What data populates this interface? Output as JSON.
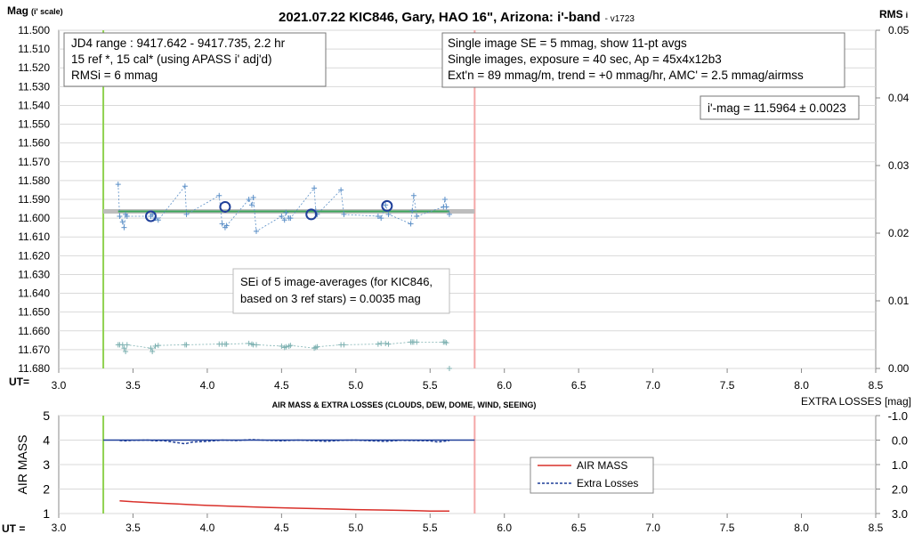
{
  "chart_data": [
    {
      "type": "scatter",
      "title": "2021.07.22 KIC846, Gary, HAO 16\", Arizona: i'-band",
      "version": "- v1723",
      "ylabel_main": "Mag",
      "ylabel_sub": "(i' scale)",
      "y2label_main": "RMS",
      "y2label_sub": "i",
      "xlabel": "UT=",
      "xlim": [
        3.0,
        8.5
      ],
      "ylim": [
        11.68,
        11.5
      ],
      "y2lim": [
        0,
        0.05
      ],
      "x_ticks": [
        "3.0",
        "3.5",
        "4.0",
        "4.5",
        "5.0",
        "5.5",
        "6.0",
        "6.5",
        "7.0",
        "7.5",
        "8.0",
        "8.5"
      ],
      "y_ticks": [
        "11.500",
        "11.510",
        "11.520",
        "11.530",
        "11.540",
        "11.550",
        "11.560",
        "11.570",
        "11.580",
        "11.590",
        "11.600",
        "11.610",
        "11.620",
        "11.630",
        "11.640",
        "11.650",
        "11.660",
        "11.670",
        "11.680"
      ],
      "y2_ticks": [
        "0.05",
        "0.04",
        "0.03",
        "0.02",
        "0.01",
        "0.00"
      ],
      "info_left": [
        "JD4 range : 9417.642 - 9417.735, 2.2  hr",
        "15 ref *, 15 cal* (using APASS i' adj'd)",
        "RMSi = 6 mmag"
      ],
      "info_right": [
        "Single image SE = 5 mmag, show 11-pt avgs",
        "Single images, exposure = 40 sec, Ap = 45x4x12b3",
        "Ext'n = 89 mmag/m, trend = +0 mmag/hr, AMC' = 2.5 mmag/airmss"
      ],
      "result_label": "i'-mag = 11.5964 ± 0.0023",
      "annotation": [
        "SEi of 5 image-averages (for KIC846,",
        "based on 3 ref stars) = 0.0035 mag"
      ],
      "start_line_x": 3.3,
      "end_line_x": 5.8,
      "mean_mag": 11.5964,
      "colors": {
        "single": "#5b8fc7",
        "avg": "#1f3f99",
        "trend": "#3aa65a",
        "band": "#bdbdbd",
        "start_line": "#8fd14f",
        "end_line": "#f4a7a7",
        "rms": "#7fb2b2"
      },
      "series": [
        {
          "name": "",
          "x": [
            3.4,
            3.41,
            3.43,
            3.44,
            3.45,
            3.46,
            3.62,
            3.63,
            3.65,
            3.67,
            3.85,
            3.86,
            4.08,
            4.1,
            4.12,
            4.13,
            4.28,
            4.3,
            4.31,
            4.33,
            4.5,
            4.52,
            4.53,
            4.55,
            4.56,
            4.72,
            4.73,
            4.74,
            4.9,
            4.92,
            5.15,
            5.17,
            5.2,
            5.22,
            5.37,
            5.38,
            5.39,
            5.41,
            5.59,
            5.6,
            5.61,
            5.63
          ],
          "y": [
            11.582,
            11.599,
            11.602,
            11.605,
            11.598,
            11.599,
            11.599,
            11.598,
            11.6,
            11.601,
            11.583,
            11.598,
            11.588,
            11.603,
            11.605,
            11.604,
            11.59,
            11.593,
            11.589,
            11.607,
            11.599,
            11.601,
            11.597,
            11.6,
            11.6,
            11.584,
            11.596,
            11.598,
            11.585,
            11.598,
            11.599,
            11.6,
            11.593,
            11.598,
            11.603,
            11.596,
            11.588,
            11.599,
            11.594,
            11.59,
            11.594,
            11.598
          ]
        },
        {
          "name": "",
          "x": [
            3.62,
            4.12,
            4.7,
            5.21
          ],
          "y": [
            11.599,
            11.594,
            11.598,
            11.5935
          ]
        },
        {
          "name": "",
          "x": [
            3.4,
            3.41,
            3.43,
            3.44,
            3.45,
            3.46,
            3.62,
            3.63,
            3.65,
            3.67,
            3.85,
            3.86,
            4.08,
            4.1,
            4.12,
            4.13,
            4.28,
            4.3,
            4.31,
            4.33,
            4.5,
            4.52,
            4.53,
            4.55,
            4.56,
            4.72,
            4.73,
            4.74,
            4.9,
            4.92,
            5.15,
            5.17,
            5.2,
            5.22,
            5.37,
            5.38,
            5.39,
            5.41,
            5.59,
            5.6,
            5.61,
            5.63
          ],
          "y": [
            0.0035,
            0.0035,
            0.0035,
            0.003,
            0.0025,
            0.0035,
            0.003,
            0.0025,
            0.0033,
            0.0034,
            0.0035,
            0.0035,
            0.0036,
            0.0036,
            0.0036,
            0.0036,
            0.0037,
            0.0036,
            0.0035,
            0.0035,
            0.0033,
            0.0031,
            0.0032,
            0.0033,
            0.0034,
            0.003,
            0.0031,
            0.0032,
            0.0035,
            0.0035,
            0.0036,
            0.0037,
            0.0037,
            0.0036,
            0.0039,
            0.0039,
            0.0039,
            0.0039,
            0.0039,
            0.0039,
            0.0038,
            0.0
          ]
        }
      ]
    },
    {
      "type": "line",
      "title": "AIR MASS & EXTRA LOSSES (CLOUDS, DEW, DOME, WIND, SEEING)",
      "ylabel": "AIR MASS",
      "y2label": "EXTRA LOSSES [mag]",
      "xlabel": "UT =",
      "xlim": [
        3.0,
        8.5
      ],
      "ylim": [
        1,
        5
      ],
      "y2lim": [
        3.0,
        -1.0
      ],
      "x_ticks": [
        "3.0",
        "3.5",
        "4.0",
        "4.5",
        "5.0",
        "5.5",
        "6.0",
        "6.5",
        "7.0",
        "7.5",
        "8.0",
        "8.5"
      ],
      "y_ticks": [
        "5",
        "4",
        "3",
        "2",
        "1"
      ],
      "y2_ticks": [
        "-1.0",
        "0.0",
        "1.0",
        "2.0",
        "3.0"
      ],
      "legend": [
        "AIR MASS",
        "Extra Losses"
      ],
      "legend_position": "center-right",
      "start_line_x": 3.3,
      "end_line_x": 5.8,
      "colors": {
        "airmass": "#d9302a",
        "losses": "#1f3f99",
        "losses_ref": "#1f3f99"
      },
      "series": [
        {
          "name": "AIR MASS",
          "x": [
            3.41,
            3.5,
            3.6,
            3.7,
            3.8,
            3.9,
            4.0,
            4.2,
            4.4,
            4.6,
            4.8,
            5.0,
            5.2,
            5.4,
            5.5,
            5.63
          ],
          "y": [
            1.52,
            1.48,
            1.45,
            1.42,
            1.39,
            1.36,
            1.33,
            1.29,
            1.25,
            1.22,
            1.19,
            1.16,
            1.14,
            1.12,
            1.1,
            1.1
          ]
        },
        {
          "name": "Extra Losses",
          "x": [
            3.41,
            3.45,
            3.5,
            3.6,
            3.65,
            3.7,
            3.85,
            3.9,
            4.0,
            4.1,
            4.2,
            4.3,
            4.4,
            4.5,
            4.6,
            4.7,
            4.8,
            4.9,
            5.0,
            5.1,
            5.2,
            5.3,
            5.4,
            5.5,
            5.55,
            5.63
          ],
          "y": [
            0.02,
            0.03,
            0.01,
            0.0,
            0.03,
            0.02,
            0.15,
            0.08,
            0.05,
            0.0,
            0.02,
            -0.02,
            0.01,
            0.03,
            0.0,
            0.02,
            0.05,
            0.01,
            0.0,
            0.03,
            0.05,
            0.01,
            0.02,
            0.03,
            0.08,
            0.02
          ]
        }
      ]
    }
  ]
}
